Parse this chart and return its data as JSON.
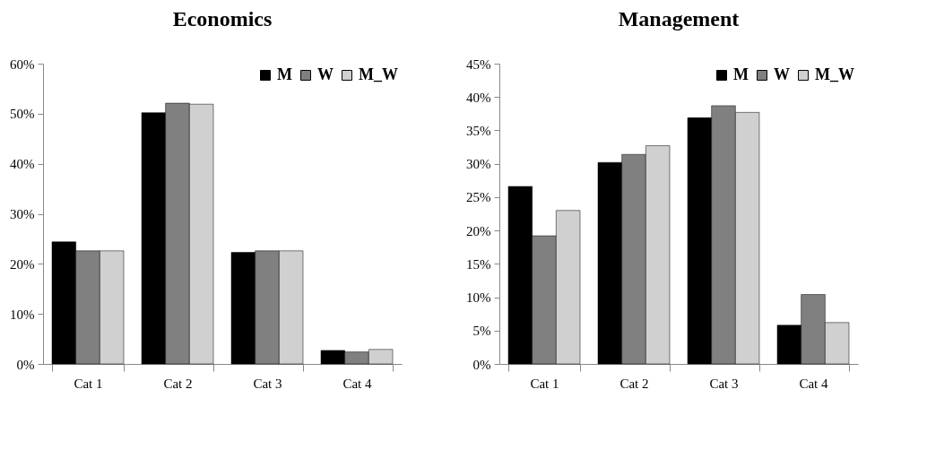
{
  "chart_data": [
    {
      "type": "bar",
      "title": "Economics",
      "categories": [
        "Cat 1",
        "Cat 2",
        "Cat 3",
        "Cat 4"
      ],
      "series": [
        {
          "name": "M",
          "color": "#000000",
          "values": [
            24.4,
            50.2,
            22.3,
            2.7
          ]
        },
        {
          "name": "W",
          "color": "#808080",
          "values": [
            22.6,
            52.1,
            22.6,
            2.4
          ]
        },
        {
          "name": "M_W",
          "color": "#d0d0d0",
          "values": [
            22.6,
            51.9,
            22.6,
            2.9
          ]
        }
      ],
      "ylim": [
        0,
        60
      ],
      "yticks": [
        {
          "value": 0,
          "label": "0%"
        },
        {
          "value": 10,
          "label": "10%"
        },
        {
          "value": 20,
          "label": "20%"
        },
        {
          "value": 30,
          "label": "30%"
        },
        {
          "value": 40,
          "label": "40%"
        },
        {
          "value": 50,
          "label": "50%"
        },
        {
          "value": 60,
          "label": "60%"
        }
      ],
      "legend": "top right",
      "grid": false
    },
    {
      "type": "bar",
      "title": "Management",
      "categories": [
        "Cat 1",
        "Cat 2",
        "Cat 3",
        "Cat 4"
      ],
      "series": [
        {
          "name": "M",
          "color": "#000000",
          "values": [
            26.6,
            30.2,
            36.9,
            5.8
          ]
        },
        {
          "name": "W",
          "color": "#808080",
          "values": [
            19.2,
            31.4,
            38.7,
            10.4
          ]
        },
        {
          "name": "M_W",
          "color": "#d0d0d0",
          "values": [
            23.0,
            32.7,
            37.7,
            6.2
          ]
        }
      ],
      "ylim": [
        0,
        45
      ],
      "yticks": [
        {
          "value": 0,
          "label": "0%"
        },
        {
          "value": 5,
          "label": "5%"
        },
        {
          "value": 10,
          "label": "10%"
        },
        {
          "value": 15,
          "label": "15%"
        },
        {
          "value": 20,
          "label": "20%"
        },
        {
          "value": 25,
          "label": "25%"
        },
        {
          "value": 30,
          "label": "30%"
        },
        {
          "value": 35,
          "label": "35%"
        },
        {
          "value": 40,
          "label": "40%"
        },
        {
          "value": 45,
          "label": "45%"
        }
      ],
      "legend": "top right",
      "grid": false
    }
  ]
}
